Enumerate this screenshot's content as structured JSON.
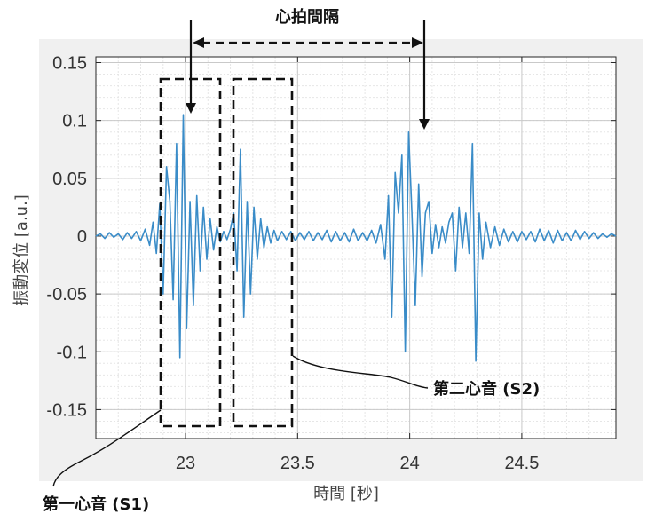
{
  "chart_data": {
    "type": "line",
    "xlabel": "時間 [秒]",
    "ylabel": "振動変位 [a.u.]",
    "xlim": [
      22.6,
      24.92
    ],
    "ylim": [
      -0.175,
      0.155
    ],
    "x_ticks": [
      23,
      23.5,
      24,
      24.5
    ],
    "x_tick_labels": [
      "23",
      "23.5",
      "24",
      "24.5"
    ],
    "y_ticks": [
      0.15,
      0.1,
      0.05,
      0,
      -0.05,
      -0.1,
      -0.15
    ],
    "y_tick_labels": [
      "0.15",
      "0.1",
      "0.05",
      "0",
      "-0.05",
      "-0.1",
      "-0.15"
    ],
    "grid": true,
    "line_color": "#3a8cc8",
    "series": [
      {
        "x": [
          22.6,
          22.62,
          22.64,
          22.66,
          22.68,
          22.7,
          22.72,
          22.74,
          22.76,
          22.78,
          22.8,
          22.82,
          22.84,
          22.855,
          22.87,
          22.885,
          22.9,
          22.915,
          22.93,
          22.945,
          22.96,
          22.975,
          22.99,
          23.005,
          23.02,
          23.035,
          23.05,
          23.065,
          23.08,
          23.095,
          23.11,
          23.125,
          23.14,
          23.155,
          23.17,
          23.185,
          23.2,
          23.215,
          23.23,
          23.245,
          23.26,
          23.275,
          23.29,
          23.305,
          23.32,
          23.335,
          23.35,
          23.365,
          23.38,
          23.395,
          23.41,
          23.43,
          23.45,
          23.47,
          23.49,
          23.51,
          23.53,
          23.55,
          23.57,
          23.59,
          23.61,
          23.63,
          23.65,
          23.67,
          23.69,
          23.71,
          23.73,
          23.75,
          23.77,
          23.79,
          23.81,
          23.83,
          23.85,
          23.87,
          23.89,
          23.905,
          23.92,
          23.935,
          23.95,
          23.965,
          23.98,
          23.995,
          24.01,
          24.025,
          24.04,
          24.055,
          24.07,
          24.085,
          24.1,
          24.115,
          24.13,
          24.145,
          24.16,
          24.175,
          24.19,
          24.205,
          24.22,
          24.235,
          24.25,
          24.265,
          24.28,
          24.295,
          24.31,
          24.325,
          24.34,
          24.36,
          24.38,
          24.4,
          24.42,
          24.44,
          24.46,
          24.48,
          24.5,
          24.52,
          24.54,
          24.56,
          24.58,
          24.6,
          24.62,
          24.64,
          24.66,
          24.68,
          24.7,
          24.72,
          24.74,
          24.76,
          24.78,
          24.8,
          24.82,
          24.84,
          24.86,
          24.88,
          24.9,
          24.92
        ],
        "y": [
          0.0,
          0.002,
          -0.002,
          0.003,
          -0.001,
          0.002,
          -0.003,
          0.003,
          -0.002,
          0.004,
          -0.004,
          0.006,
          -0.008,
          0.012,
          -0.015,
          0.028,
          -0.05,
          0.06,
          0.03,
          -0.055,
          0.08,
          -0.105,
          0.105,
          -0.08,
          0.03,
          -0.06,
          0.035,
          -0.03,
          0.025,
          -0.02,
          0.015,
          -0.012,
          0.008,
          -0.005,
          0.004,
          -0.003,
          0.006,
          0.02,
          -0.03,
          0.075,
          -0.07,
          0.03,
          -0.05,
          0.025,
          -0.02,
          0.015,
          -0.01,
          0.008,
          -0.006,
          0.005,
          -0.004,
          0.004,
          -0.003,
          0.004,
          -0.004,
          0.003,
          -0.003,
          0.004,
          -0.004,
          0.003,
          -0.003,
          0.005,
          -0.005,
          0.004,
          -0.004,
          0.003,
          -0.005,
          0.006,
          -0.004,
          0.003,
          -0.004,
          0.005,
          -0.006,
          0.01,
          -0.02,
          0.035,
          -0.07,
          0.055,
          0.02,
          0.07,
          -0.1,
          0.09,
          0.02,
          -0.06,
          0.045,
          -0.035,
          0.02,
          0.03,
          -0.015,
          0.01,
          -0.01,
          0.008,
          -0.006,
          0.012,
          0.02,
          -0.03,
          0.025,
          -0.01,
          0.02,
          -0.015,
          0.08,
          -0.108,
          0.02,
          -0.02,
          0.012,
          -0.01,
          0.008,
          -0.008,
          0.006,
          -0.005,
          0.004,
          -0.005,
          0.004,
          -0.003,
          0.004,
          -0.005,
          0.006,
          -0.004,
          0.005,
          -0.006,
          0.005,
          -0.004,
          0.003,
          -0.004,
          0.005,
          -0.003,
          0.004,
          -0.002,
          0.003,
          -0.002,
          0.002,
          -0.001,
          0.002,
          0.0
        ]
      }
    ],
    "annotations": {
      "interval_label": "心拍間隔",
      "s1_label": "第一心音 (S1)",
      "s2_label": "第二心音 (S2)"
    }
  }
}
